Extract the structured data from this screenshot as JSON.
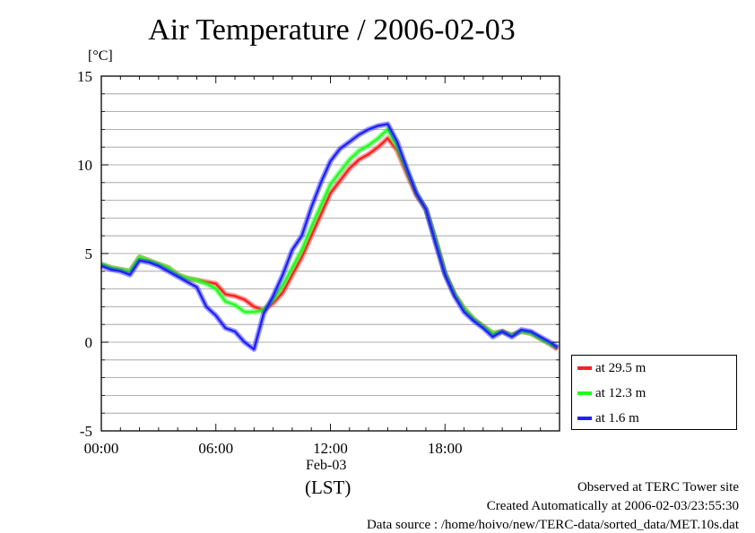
{
  "title": "Air Temperature / 2006-02-03",
  "chart_data": {
    "type": "line",
    "title": "Air Temperature / 2006-02-03",
    "ylabel": "[°C]",
    "xlabel": "(LST)",
    "x_date_label": "Feb-03",
    "xlim": [
      0,
      24
    ],
    "ylim": [
      -5,
      15
    ],
    "x_ticks": [
      "00:00",
      "06:00",
      "12:00",
      "18:00"
    ],
    "y_ticks": [
      "-5",
      "0",
      "5",
      "10",
      "15"
    ],
    "grid": true,
    "legend_position": "bottom-right, outside plot",
    "series": [
      {
        "name": "at 29.5 m",
        "color": "#ff2020",
        "x": [
          0,
          0.5,
          1.0,
          1.5,
          2.0,
          2.5,
          3.0,
          3.5,
          4.0,
          4.5,
          5.0,
          5.5,
          6.0,
          6.5,
          7.0,
          7.5,
          8.0,
          8.5,
          9.0,
          9.5,
          10.0,
          10.5,
          11.0,
          11.5,
          12.0,
          12.5,
          13.0,
          13.5,
          14.0,
          14.5,
          15.0,
          15.5,
          16.0,
          16.5,
          17.0,
          17.5,
          18.0,
          18.5,
          19.0,
          19.5,
          20.0,
          20.5,
          21.0,
          21.5,
          22.0,
          22.5,
          23.0,
          23.5,
          23.9
        ],
        "y": [
          4.4,
          4.2,
          4.1,
          4.0,
          4.8,
          4.6,
          4.4,
          4.2,
          3.8,
          3.6,
          3.5,
          3.4,
          3.3,
          2.7,
          2.6,
          2.4,
          2.0,
          1.8,
          2.2,
          2.8,
          3.8,
          4.8,
          6.0,
          7.2,
          8.4,
          9.1,
          9.8,
          10.3,
          10.6,
          11.0,
          11.5,
          10.8,
          9.5,
          8.3,
          7.5,
          5.8,
          3.9,
          2.7,
          1.9,
          1.3,
          0.9,
          0.5,
          0.6,
          0.4,
          0.6,
          0.5,
          0.2,
          -0.1,
          -0.4
        ]
      },
      {
        "name": "at 12.3 m",
        "color": "#20ff20",
        "x": [
          0,
          0.5,
          1.0,
          1.5,
          2.0,
          2.5,
          3.0,
          3.5,
          4.0,
          4.5,
          5.0,
          5.5,
          6.0,
          6.5,
          7.0,
          7.5,
          8.0,
          8.5,
          9.0,
          9.5,
          10.0,
          10.5,
          11.0,
          11.5,
          12.0,
          12.5,
          13.0,
          13.5,
          14.0,
          14.5,
          15.0,
          15.5,
          16.0,
          16.5,
          17.0,
          17.5,
          18.0,
          18.5,
          19.0,
          19.5,
          20.0,
          20.5,
          21.0,
          21.5,
          22.0,
          22.5,
          23.0,
          23.5,
          23.9
        ],
        "y": [
          4.4,
          4.2,
          4.1,
          4.0,
          4.8,
          4.6,
          4.4,
          4.2,
          3.8,
          3.6,
          3.5,
          3.3,
          3.0,
          2.3,
          2.1,
          1.7,
          1.7,
          1.8,
          2.4,
          3.2,
          4.2,
          5.2,
          6.5,
          7.7,
          8.9,
          9.6,
          10.3,
          10.8,
          11.1,
          11.5,
          12.0,
          11.0,
          9.7,
          8.4,
          7.5,
          5.8,
          3.9,
          2.7,
          1.9,
          1.3,
          0.9,
          0.5,
          0.6,
          0.4,
          0.6,
          0.5,
          0.2,
          -0.1,
          -0.3
        ]
      },
      {
        "name": "at 1.6 m",
        "color": "#2020ff",
        "x": [
          0,
          0.5,
          1.0,
          1.5,
          2.0,
          2.5,
          3.0,
          3.5,
          4.0,
          4.5,
          5.0,
          5.5,
          6.0,
          6.5,
          7.0,
          7.5,
          8.0,
          8.5,
          9.0,
          9.5,
          10.0,
          10.5,
          11.0,
          11.5,
          12.0,
          12.5,
          13.0,
          13.5,
          14.0,
          14.5,
          15.0,
          15.5,
          16.0,
          16.5,
          17.0,
          17.5,
          18.0,
          18.5,
          19.0,
          19.5,
          20.0,
          20.5,
          21.0,
          21.5,
          22.0,
          22.5,
          23.0,
          23.5,
          23.9
        ],
        "y": [
          4.3,
          4.1,
          4.0,
          3.8,
          4.6,
          4.5,
          4.3,
          4.0,
          3.7,
          3.4,
          3.1,
          2.0,
          1.5,
          0.8,
          0.6,
          0.0,
          -0.4,
          1.6,
          2.6,
          3.8,
          5.2,
          6.0,
          7.6,
          9.0,
          10.2,
          10.9,
          11.3,
          11.7,
          12.0,
          12.2,
          12.3,
          11.3,
          9.8,
          8.4,
          7.5,
          5.6,
          3.8,
          2.6,
          1.7,
          1.2,
          0.8,
          0.3,
          0.6,
          0.3,
          0.7,
          0.6,
          0.3,
          0.0,
          -0.3
        ]
      }
    ]
  },
  "footer": {
    "observed": "Observed at TERC Tower site",
    "created": "Created Automatically at 2006-02-03/23:55:30",
    "source": "Data source : /home/hoivo/new/TERC-data/sorted_data/MET.10s.dat"
  }
}
